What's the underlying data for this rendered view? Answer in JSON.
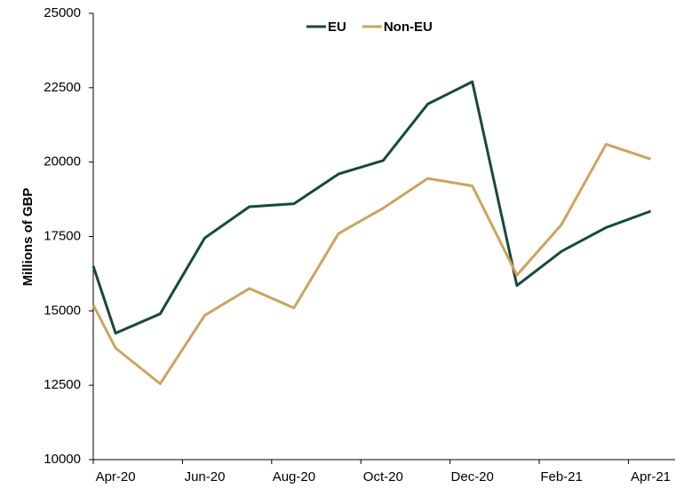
{
  "chart_data": {
    "type": "line",
    "y_label": "Millions of GBP",
    "categories": [
      null,
      "Apr-20",
      null,
      "Jun-20",
      null,
      "Aug-20",
      null,
      "Oct-20",
      null,
      "Dec-20",
      null,
      "Feb-21",
      null,
      "Apr-21"
    ],
    "series": [
      {
        "name": "EU",
        "color": "#174a38",
        "values": [
          16500,
          14250,
          14900,
          17450,
          18500,
          18600,
          19600,
          20050,
          21950,
          22700,
          15850,
          17000,
          17800,
          18350
        ]
      },
      {
        "name": "Non-EU",
        "color": "#c9a55e",
        "values": [
          15200,
          13750,
          12550,
          14850,
          15750,
          15100,
          17600,
          18450,
          19450,
          19200,
          16200,
          17900,
          20600,
          20100
        ]
      }
    ],
    "ylim": [
      10000,
      25000
    ],
    "yticks": [
      10000,
      12500,
      15000,
      17500,
      20000,
      22500,
      25000
    ],
    "legend": "top"
  }
}
